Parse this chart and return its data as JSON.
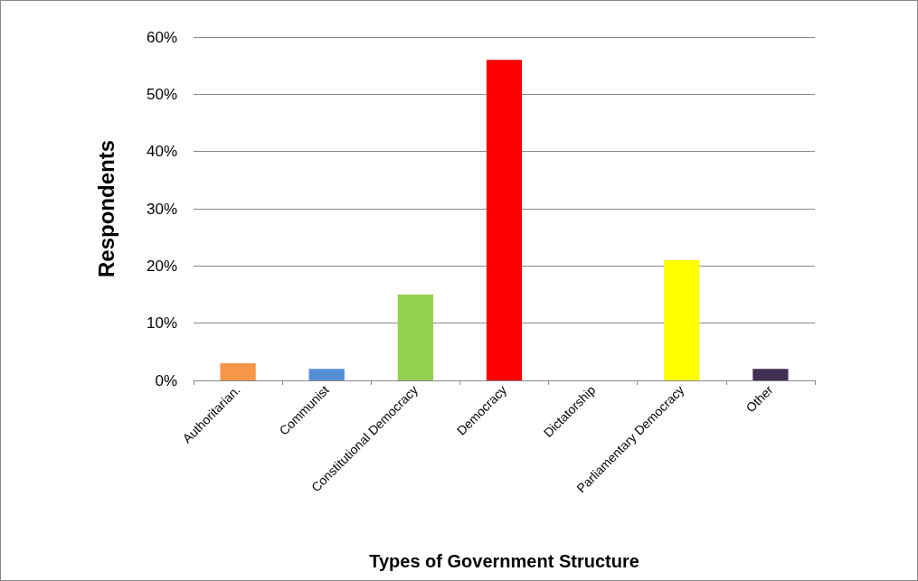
{
  "chart_data": {
    "type": "bar",
    "xlabel": "Types of Government Structure",
    "ylabel": "Respondents",
    "categories": [
      "Authoritarian.",
      "Communist",
      "Constitutional Democracy",
      "Democracy",
      "Dictatorship",
      "Parliamentary Democracy",
      "Other"
    ],
    "values": [
      3,
      2,
      15,
      56,
      0,
      21,
      2
    ],
    "colors": [
      "#f79646",
      "#558ed5",
      "#92d050",
      "#ff0000",
      "#4bacc6",
      "#ffff00",
      "#403152"
    ],
    "ylim": [
      0,
      60
    ],
    "yticks": [
      {
        "value": 0,
        "label": "0%"
      },
      {
        "value": 10,
        "label": "10%"
      },
      {
        "value": 20,
        "label": "20%"
      },
      {
        "value": 30,
        "label": "30%"
      },
      {
        "value": 40,
        "label": "40%"
      },
      {
        "value": 50,
        "label": "50%"
      },
      {
        "value": 60,
        "label": "60%"
      }
    ],
    "grid": "y"
  }
}
